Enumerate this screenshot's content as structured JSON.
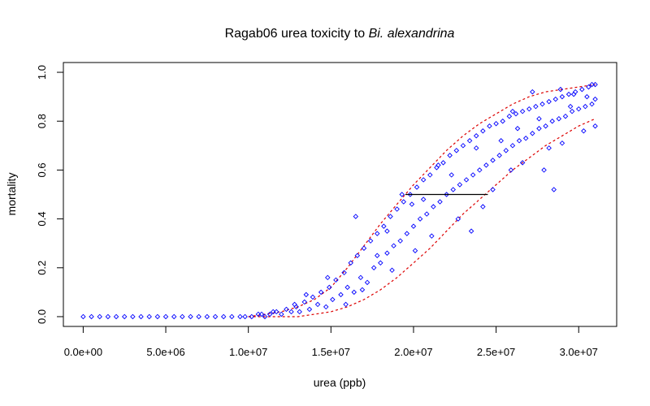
{
  "chart_data": {
    "type": "scatter",
    "title": "Ragab06 urea toxicity to",
    "title_species": "Bi. alexandrina",
    "xlabel": "urea (ppb)",
    "ylabel": "mortality",
    "xlim": [
      -1200000,
      32300000
    ],
    "ylim": [
      -0.04,
      1.04
    ],
    "x_ticks": [
      0,
      5000000,
      10000000,
      15000000,
      20000000,
      25000000,
      30000000
    ],
    "x_tick_labels": [
      "0.0e+00",
      "5.0e+06",
      "1.0e+07",
      "1.5e+07",
      "2.0e+07",
      "2.5e+07",
      "3.0e+07"
    ],
    "y_ticks": [
      0,
      0.2,
      0.4,
      0.6,
      0.8,
      1.0
    ],
    "y_tick_labels": [
      "0.0",
      "0.2",
      "0.4",
      "0.6",
      "0.8",
      "1.0"
    ],
    "grid": false,
    "legend": "none",
    "marker": "open-diamond",
    "colors": {
      "points": "#0000ff",
      "band": "#dd0000",
      "lc50": "#000000",
      "frame": "#000000"
    },
    "lc50_segment": {
      "y": 0.5,
      "x_from": 19500000,
      "x_to": 24500000
    },
    "fit": {
      "x": [
        10000000,
        11000000,
        12000000,
        13000000,
        14000000,
        15000000,
        16000000,
        17000000,
        18000000,
        19000000,
        20000000,
        21000000,
        22000000,
        23000000,
        24000000,
        25000000,
        26000000,
        27000000,
        28000000,
        29000000,
        30000000,
        31000000
      ],
      "upper": [
        0.0,
        0.01,
        0.02,
        0.04,
        0.07,
        0.12,
        0.2,
        0.29,
        0.38,
        0.46,
        0.54,
        0.61,
        0.68,
        0.74,
        0.79,
        0.83,
        0.87,
        0.9,
        0.92,
        0.93,
        0.94,
        0.95
      ],
      "lower": [
        0.0,
        0.0,
        0.0,
        0.0,
        0.01,
        0.02,
        0.04,
        0.07,
        0.11,
        0.16,
        0.22,
        0.28,
        0.35,
        0.42,
        0.48,
        0.54,
        0.6,
        0.65,
        0.7,
        0.74,
        0.78,
        0.81
      ]
    },
    "series": [
      {
        "points": [
          [
            0,
            0.0
          ],
          [
            500000,
            0.0
          ],
          [
            1000000,
            0.0
          ],
          [
            1500000,
            0.0
          ],
          [
            2000000,
            0.0
          ],
          [
            2500000,
            0.0
          ],
          [
            3000000,
            0.0
          ],
          [
            3500000,
            0.0
          ],
          [
            4000000,
            0.0
          ],
          [
            4500000,
            0.0
          ],
          [
            5000000,
            0.0
          ],
          [
            5500000,
            0.0
          ],
          [
            6000000,
            0.0
          ],
          [
            6500000,
            0.0
          ],
          [
            7000000,
            0.0
          ],
          [
            7500000,
            0.0
          ],
          [
            8000000,
            0.0
          ],
          [
            8500000,
            0.0
          ],
          [
            9000000,
            0.0
          ],
          [
            9500000,
            0.0
          ],
          [
            10200000,
            0.0
          ],
          [
            10600000,
            0.01
          ],
          [
            11000000,
            0.0
          ],
          [
            11300000,
            0.01
          ],
          [
            11700000,
            0.02
          ],
          [
            12000000,
            0.01
          ],
          [
            12300000,
            0.03
          ],
          [
            12600000,
            0.02
          ],
          [
            12900000,
            0.04
          ],
          [
            13100000,
            0.02
          ],
          [
            13400000,
            0.06
          ],
          [
            13700000,
            0.03
          ],
          [
            13900000,
            0.08
          ],
          [
            14200000,
            0.05
          ],
          [
            14400000,
            0.1
          ],
          [
            14700000,
            0.04
          ],
          [
            14900000,
            0.12
          ],
          [
            15100000,
            0.07
          ],
          [
            15300000,
            0.15
          ],
          [
            15600000,
            0.09
          ],
          [
            15800000,
            0.18
          ],
          [
            16000000,
            0.12
          ],
          [
            16200000,
            0.22
          ],
          [
            16400000,
            0.1
          ],
          [
            16600000,
            0.25
          ],
          [
            16800000,
            0.16
          ],
          [
            17000000,
            0.28
          ],
          [
            17200000,
            0.14
          ],
          [
            17400000,
            0.31
          ],
          [
            17600000,
            0.2
          ],
          [
            17800000,
            0.34
          ],
          [
            18000000,
            0.22
          ],
          [
            18200000,
            0.37
          ],
          [
            18400000,
            0.26
          ],
          [
            18600000,
            0.41
          ],
          [
            18800000,
            0.29
          ],
          [
            19000000,
            0.44
          ],
          [
            19200000,
            0.31
          ],
          [
            19400000,
            0.47
          ],
          [
            19600000,
            0.34
          ],
          [
            19800000,
            0.5
          ],
          [
            20000000,
            0.37
          ],
          [
            20200000,
            0.53
          ],
          [
            20400000,
            0.4
          ],
          [
            20600000,
            0.56
          ],
          [
            20800000,
            0.42
          ],
          [
            21000000,
            0.58
          ],
          [
            21200000,
            0.45
          ],
          [
            21400000,
            0.61
          ],
          [
            21600000,
            0.47
          ],
          [
            21800000,
            0.63
          ],
          [
            22000000,
            0.5
          ],
          [
            22200000,
            0.66
          ],
          [
            22400000,
            0.52
          ],
          [
            22600000,
            0.68
          ],
          [
            22800000,
            0.54
          ],
          [
            23000000,
            0.7
          ],
          [
            23200000,
            0.56
          ],
          [
            23400000,
            0.72
          ],
          [
            23600000,
            0.58
          ],
          [
            23800000,
            0.74
          ],
          [
            24000000,
            0.6
          ],
          [
            24200000,
            0.76
          ],
          [
            24400000,
            0.62
          ],
          [
            24600000,
            0.78
          ],
          [
            24800000,
            0.64
          ],
          [
            25000000,
            0.79
          ],
          [
            25200000,
            0.66
          ],
          [
            25400000,
            0.8
          ],
          [
            25600000,
            0.68
          ],
          [
            25800000,
            0.82
          ],
          [
            26000000,
            0.7
          ],
          [
            26200000,
            0.83
          ],
          [
            26400000,
            0.72
          ],
          [
            26600000,
            0.84
          ],
          [
            26800000,
            0.73
          ],
          [
            27000000,
            0.85
          ],
          [
            27200000,
            0.75
          ],
          [
            27400000,
            0.86
          ],
          [
            27600000,
            0.77
          ],
          [
            27800000,
            0.87
          ],
          [
            28000000,
            0.78
          ],
          [
            28200000,
            0.88
          ],
          [
            28400000,
            0.8
          ],
          [
            28600000,
            0.89
          ],
          [
            28800000,
            0.81
          ],
          [
            29000000,
            0.9
          ],
          [
            29200000,
            0.82
          ],
          [
            29400000,
            0.91
          ],
          [
            29600000,
            0.84
          ],
          [
            29800000,
            0.92
          ],
          [
            30000000,
            0.85
          ],
          [
            30200000,
            0.93
          ],
          [
            30400000,
            0.86
          ],
          [
            30600000,
            0.94
          ],
          [
            30800000,
            0.87
          ],
          [
            31000000,
            0.95
          ],
          [
            31000000,
            0.78
          ],
          [
            30500000,
            0.9
          ],
          [
            29500000,
            0.86
          ],
          [
            16500000,
            0.41
          ],
          [
            19300000,
            0.5
          ],
          [
            25900000,
            0.6
          ],
          [
            27900000,
            0.6
          ],
          [
            27200000,
            0.92
          ],
          [
            26000000,
            0.84
          ],
          [
            28500000,
            0.52
          ],
          [
            30300000,
            0.76
          ],
          [
            23500000,
            0.35
          ],
          [
            21500000,
            0.62
          ],
          [
            18700000,
            0.19
          ],
          [
            20100000,
            0.27
          ],
          [
            22700000,
            0.4
          ],
          [
            24800000,
            0.52
          ],
          [
            26600000,
            0.63
          ],
          [
            29000000,
            0.71
          ],
          [
            17800000,
            0.25
          ],
          [
            19900000,
            0.46
          ],
          [
            21100000,
            0.33
          ],
          [
            23800000,
            0.69
          ],
          [
            25300000,
            0.72
          ],
          [
            27600000,
            0.81
          ],
          [
            28900000,
            0.93
          ],
          [
            30800000,
            0.95
          ],
          [
            14800000,
            0.16
          ],
          [
            15900000,
            0.05
          ],
          [
            16900000,
            0.11
          ],
          [
            18400000,
            0.35
          ],
          [
            20600000,
            0.48
          ],
          [
            22300000,
            0.58
          ],
          [
            24200000,
            0.45
          ],
          [
            26300000,
            0.77
          ],
          [
            28200000,
            0.69
          ],
          [
            29700000,
            0.91
          ],
          [
            31000000,
            0.89
          ],
          [
            13500000,
            0.09
          ],
          [
            12800000,
            0.05
          ],
          [
            11500000,
            0.02
          ],
          [
            10800000,
            0.01
          ],
          [
            9800000,
            0.0
          ]
        ]
      }
    ]
  }
}
